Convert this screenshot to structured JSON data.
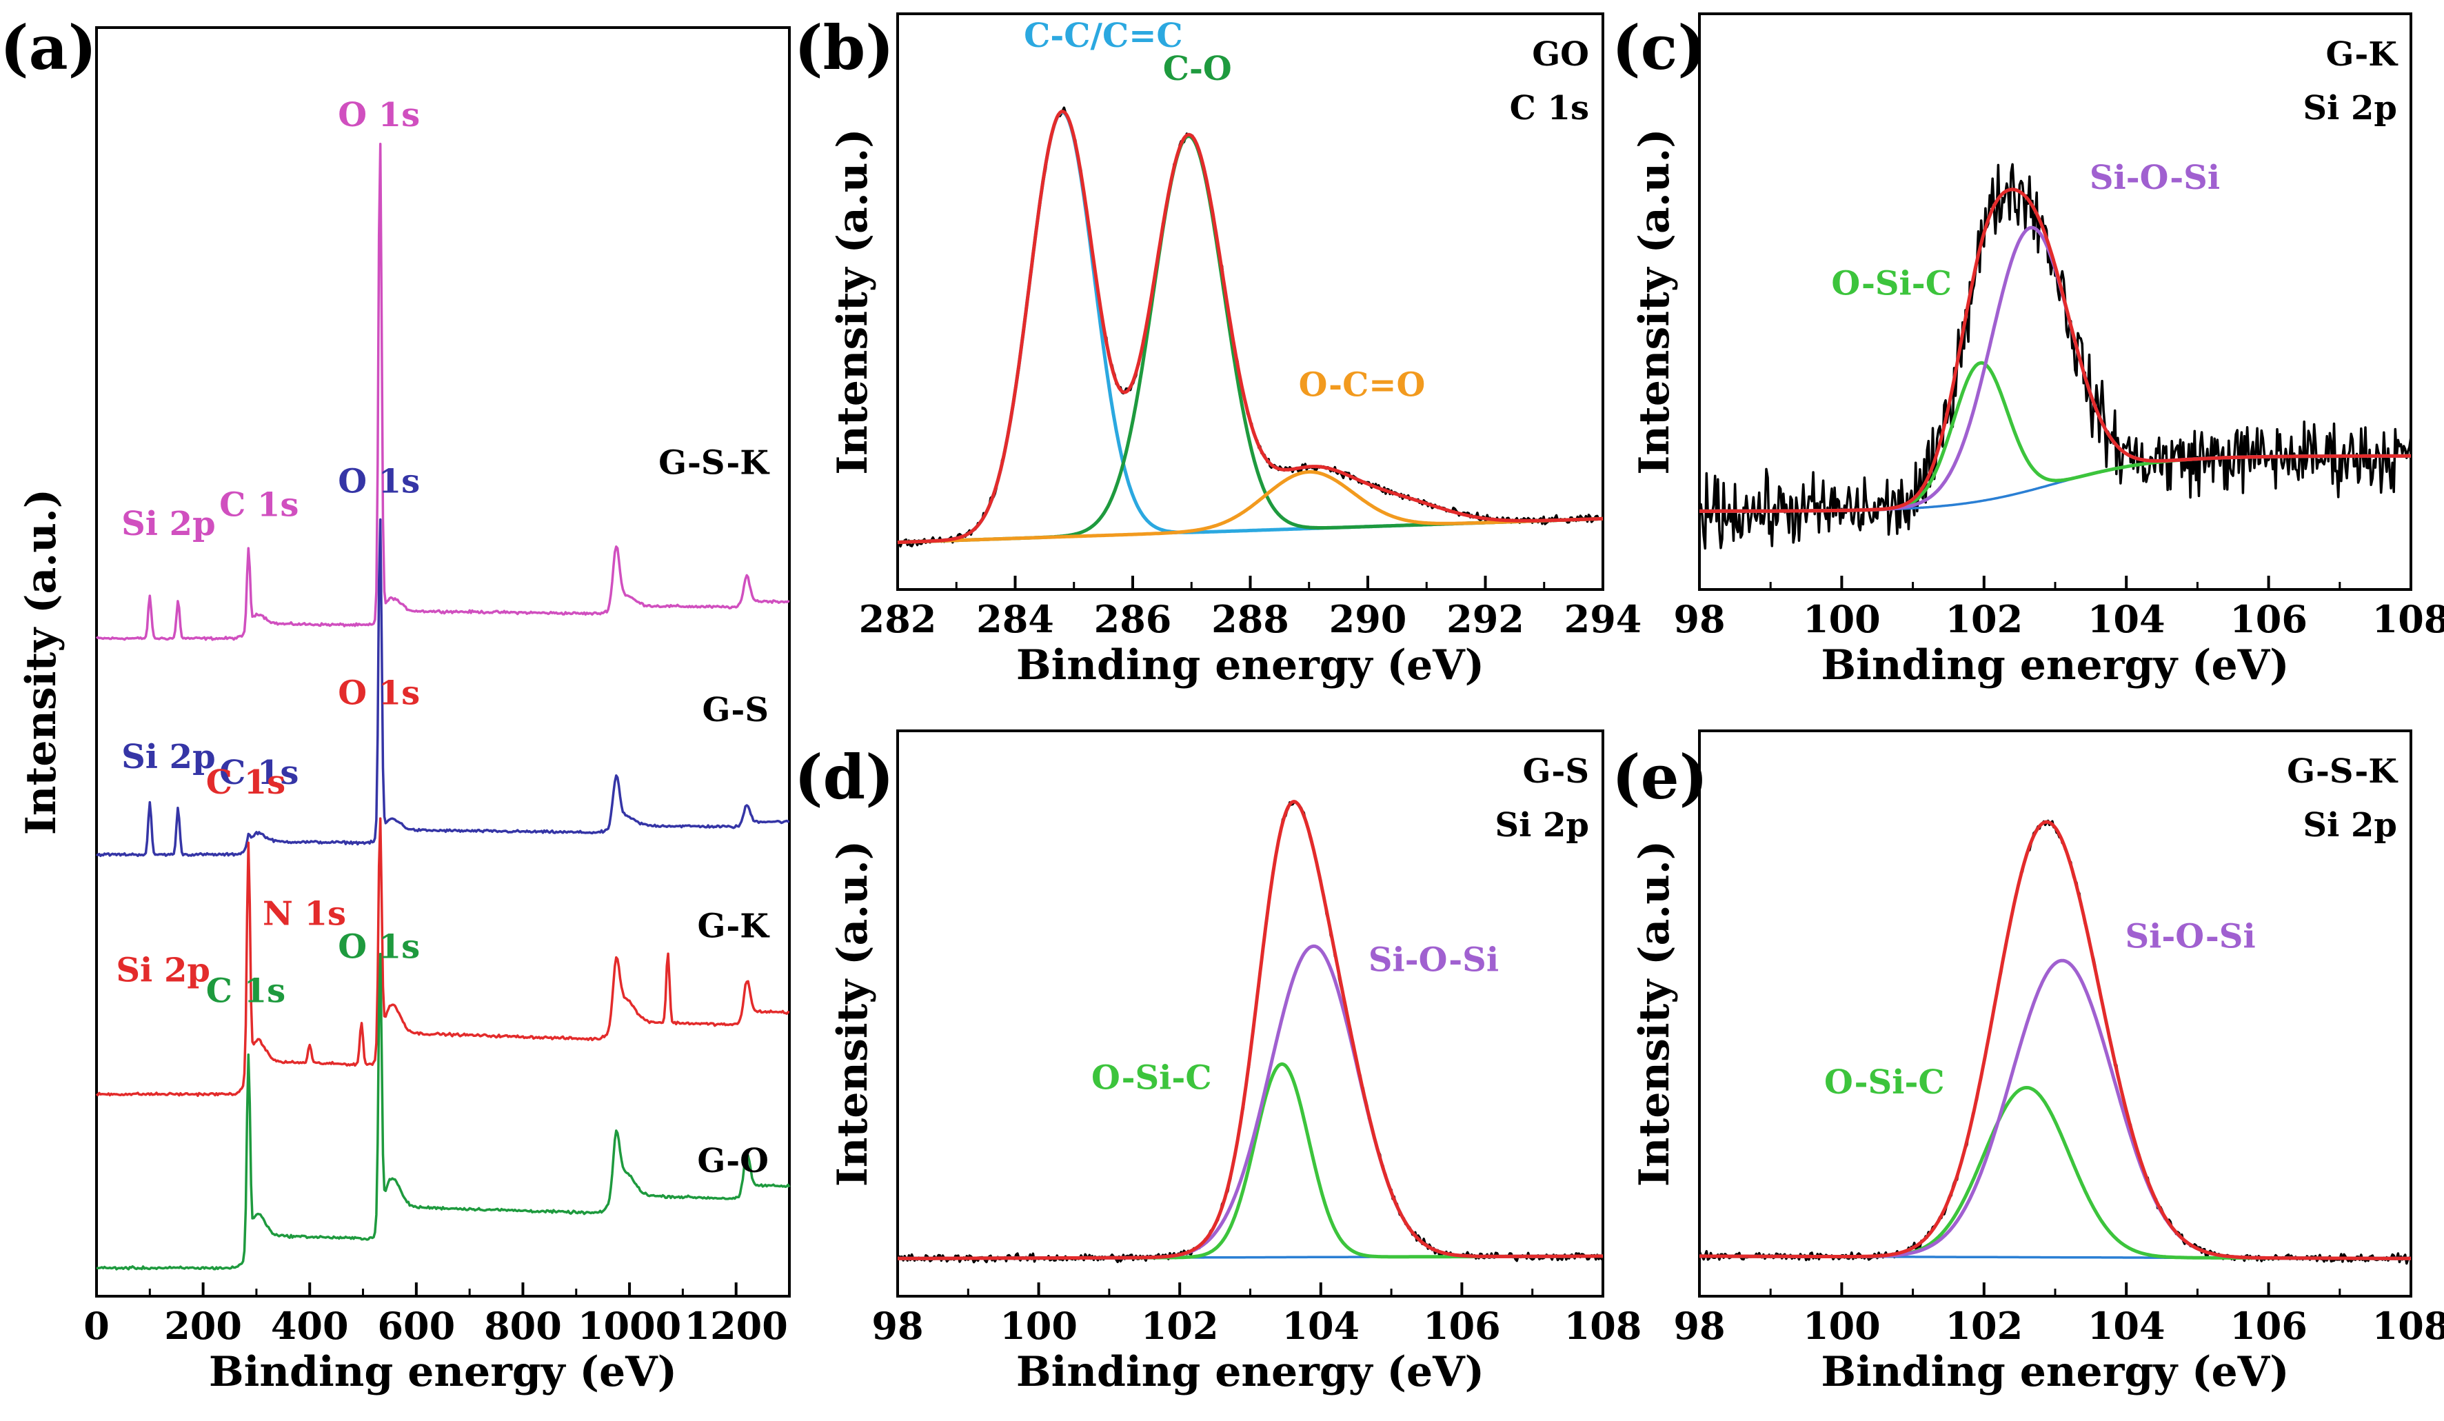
{
  "chart_data": [
    {
      "id": "a",
      "panel_label": "(a)",
      "type": "line",
      "title": "",
      "xlabel": "Binding energy (eV)",
      "ylabel": "Intensity (a.u.)",
      "xlim": [
        0,
        1300
      ],
      "xticks": [
        0,
        200,
        400,
        600,
        800,
        1000,
        1200
      ],
      "xtick_labels": [
        "0",
        "200",
        "400",
        "600",
        "800",
        "1000",
        "1200"
      ],
      "yticks": false,
      "series": [
        {
          "name": "G-S-K",
          "color": "#d04fbf",
          "label_pos": [
            430,
            8.55
          ],
          "peaks": [
            {
              "x": 100,
              "h": 0.45,
              "w": 3
            },
            {
              "x": 153,
              "h": 0.4,
              "w": 3
            },
            {
              "x": 285,
              "h": 0.85,
              "w": 3
            },
            {
              "x": 532,
              "h": 5.1,
              "w": 3
            },
            {
              "x": 975,
              "h": 0.6,
              "w": 6
            },
            {
              "x": 1220,
              "h": 0.3,
              "w": 6
            }
          ],
          "offset": 6.8,
          "baseline_rise": 0.45,
          "annotations": [
            {
              "text": "O 1s",
              "x": 530,
              "y": 12.25
            },
            {
              "text": "Si 2p",
              "x": 135,
              "y": 7.9
            },
            {
              "text": "C 1s",
              "x": 305,
              "y": 8.1
            }
          ]
        },
        {
          "name": "G-S",
          "color": "#3535a6",
          "label_pos": [
            440,
            5.92
          ],
          "peaks": [
            {
              "x": 100,
              "h": 0.55,
              "w": 3
            },
            {
              "x": 153,
              "h": 0.5,
              "w": 3
            },
            {
              "x": 285,
              "h": 0.12,
              "w": 3
            },
            {
              "x": 532,
              "h": 3.4,
              "w": 3
            },
            {
              "x": 975,
              "h": 0.5,
              "w": 6
            },
            {
              "x": 1220,
              "h": 0.2,
              "w": 6
            }
          ],
          "offset": 4.5,
          "baseline_rise": 0.4,
          "annotations": [
            {
              "text": "O 1s",
              "x": 530,
              "y": 8.35
            },
            {
              "text": "Si 2p",
              "x": 135,
              "y": 5.42
            },
            {
              "text": "C 1s",
              "x": 305,
              "y": 5.25
            }
          ]
        },
        {
          "name": "G-K",
          "color": "#e32b2b",
          "label_pos": [
            440,
            3.62
          ],
          "peaks": [
            {
              "x": 285,
              "h": 2.45,
              "w": 3
            },
            {
              "x": 400,
              "h": 0.2,
              "w": 3
            },
            {
              "x": 497,
              "h": 0.45,
              "w": 3
            },
            {
              "x": 532,
              "h": 2.45,
              "w": 3
            },
            {
              "x": 975,
              "h": 0.6,
              "w": 6
            },
            {
              "x": 1072,
              "h": 0.75,
              "w": 3
            },
            {
              "x": 1220,
              "h": 0.4,
              "w": 6
            }
          ],
          "offset": 1.95,
          "baseline_rise": 1.0,
          "annotations": [
            {
              "text": "O 1s",
              "x": 530,
              "y": 6.1
            },
            {
              "text": "C 1s",
              "x": 280,
              "y": 5.15
            },
            {
              "text": "N 1s",
              "x": 390,
              "y": 3.75
            },
            {
              "text": "Si 2p",
              "x": 125,
              "y": 3.15
            }
          ]
        },
        {
          "name": "G-O",
          "color": "#1e9a3e",
          "label_pos": [
            440,
            1.12
          ],
          "peaks": [
            {
              "x": 285,
              "h": 2.05,
              "w": 3
            },
            {
              "x": 532,
              "h": 2.85,
              "w": 3
            },
            {
              "x": 975,
              "h": 0.6,
              "w": 6
            },
            {
              "x": 1220,
              "h": 0.4,
              "w": 6
            }
          ],
          "offset": 0.1,
          "baseline_rise": 1.0,
          "annotations": [
            {
              "text": "C 1s",
              "x": 280,
              "y": 2.93
            },
            {
              "text": "O 1s",
              "x": 530,
              "y": 3.4
            }
          ]
        }
      ]
    },
    {
      "id": "b",
      "panel_label": "(b)",
      "type": "line",
      "title": "GO\nC 1s",
      "title_lines": [
        "GO",
        "C 1s"
      ],
      "xlabel": "Binding energy (eV)",
      "ylabel": "Intensity (a.u.)",
      "xlim": [
        282,
        294
      ],
      "ylim": [
        -0.1,
        1.12
      ],
      "xticks": [
        282,
        284,
        286,
        288,
        290,
        292,
        294
      ],
      "xtick_labels": [
        "282",
        "284",
        "286",
        "288",
        "290",
        "292",
        "294"
      ],
      "background": {
        "x0": 282,
        "y0": 0.0,
        "x1": 294,
        "y1": 0.05
      },
      "components": [
        {
          "name": "C-C/C=C",
          "center": 284.8,
          "height": 0.9,
          "width": 0.55,
          "color": "#2ba8e0"
        },
        {
          "name": "C-O",
          "center": 286.95,
          "height": 0.84,
          "width": 0.6,
          "color": "#1e9a3e"
        },
        {
          "name": "O-C=O",
          "center": 289.0,
          "height": 0.12,
          "width": 0.75,
          "color": "#f29a1e"
        }
      ],
      "envelope_color": "#e32b2b",
      "raw_color": "#000000",
      "annotations": [
        {
          "text": "C-C/C=C",
          "x": 285.5,
          "y": 1.05,
          "color": "#2ba8e0"
        },
        {
          "text": "C-O",
          "x": 287.1,
          "y": 0.98,
          "color": "#1e9a3e"
        },
        {
          "text": "O-C=O",
          "x": 289.9,
          "y": 0.31,
          "color": "#f29a1e"
        }
      ]
    },
    {
      "id": "c",
      "panel_label": "(c)",
      "type": "line",
      "title": "G-K\nSi 2p",
      "title_lines": [
        "G-K",
        "Si 2p"
      ],
      "xlabel": "Binding energy (eV)",
      "ylabel": "Intensity (a.u.)",
      "xlim": [
        98,
        108
      ],
      "ylim": [
        -0.15,
        1.1
      ],
      "xticks": [
        98,
        100,
        102,
        104,
        106,
        108
      ],
      "xtick_labels": [
        "98",
        "100",
        "102",
        "104",
        "106",
        "108"
      ],
      "background": {
        "type": "step",
        "x0": 98,
        "low": 0.02,
        "high": 0.14,
        "mid": 103.0
      },
      "components": [
        {
          "name": "O-Si-C",
          "center": 101.95,
          "height": 0.3,
          "width": 0.38,
          "color": "#3cc43c"
        },
        {
          "name": "Si-O-Si",
          "center": 102.65,
          "height": 0.57,
          "width": 0.55,
          "color": "#a060d0"
        }
      ],
      "envelope_color": "#e32b2b",
      "raw_color": "#000000",
      "raw_noise": 0.11,
      "annotations": [
        {
          "text": "Si-O-Si",
          "x": 104.4,
          "y": 0.72,
          "color": "#a060d0"
        },
        {
          "text": "O-Si-C",
          "x": 100.7,
          "y": 0.49,
          "color": "#3cc43c"
        }
      ]
    },
    {
      "id": "d",
      "panel_label": "(d)",
      "type": "line",
      "title": "G-S\nSi 2p",
      "title_lines": [
        "G-S",
        "Si 2p"
      ],
      "xlabel": "Binding energy (eV)",
      "ylabel": "Intensity (a.u.)",
      "xlim": [
        98,
        108
      ],
      "ylim": [
        -0.08,
        1.12
      ],
      "xticks": [
        98,
        100,
        102,
        104,
        106,
        108
      ],
      "xtick_labels": [
        "98",
        "100",
        "102",
        "104",
        "106",
        "108"
      ],
      "background": {
        "x0": 98,
        "y0": 0.0,
        "x1": 108,
        "y1": 0.005
      },
      "components": [
        {
          "name": "O-Si-C",
          "center": 103.45,
          "height": 0.41,
          "width": 0.38,
          "color": "#3cc43c"
        },
        {
          "name": "Si-O-Si",
          "center": 103.9,
          "height": 0.66,
          "width": 0.62,
          "color": "#a060d0"
        }
      ],
      "envelope_color": "#e32b2b",
      "raw_color": "#000000",
      "raw_noise": 0.012,
      "annotations": [
        {
          "text": "Si-O-Si",
          "x": 105.6,
          "y": 0.61,
          "color": "#a060d0"
        },
        {
          "text": "O-Si-C",
          "x": 101.6,
          "y": 0.36,
          "color": "#3cc43c"
        }
      ]
    },
    {
      "id": "e",
      "panel_label": "(e)",
      "type": "line",
      "title": "G-S-K\nSi 2p",
      "title_lines": [
        "G-S-K",
        "Si 2p"
      ],
      "xlabel": "Binding energy (eV)",
      "ylabel": "Intensity (a.u.)",
      "xlim": [
        98,
        108
      ],
      "ylim": [
        -0.08,
        1.12
      ],
      "xticks": [
        98,
        100,
        102,
        104,
        106,
        108
      ],
      "xtick_labels": [
        "98",
        "100",
        "102",
        "104",
        "106",
        "108"
      ],
      "background": {
        "x0": 98,
        "y0": 0.005,
        "x1": 108,
        "y1": 0.0
      },
      "components": [
        {
          "name": "O-Si-C",
          "center": 102.6,
          "height": 0.36,
          "width": 0.6,
          "color": "#3cc43c"
        },
        {
          "name": "Si-O-Si",
          "center": 103.1,
          "height": 0.63,
          "width": 0.72,
          "color": "#a060d0"
        }
      ],
      "envelope_color": "#e32b2b",
      "raw_color": "#000000",
      "raw_noise": 0.012,
      "annotations": [
        {
          "text": "Si-O-Si",
          "x": 104.9,
          "y": 0.66,
          "color": "#a060d0"
        },
        {
          "text": "O-Si-C",
          "x": 100.6,
          "y": 0.35,
          "color": "#3cc43c"
        }
      ]
    }
  ]
}
